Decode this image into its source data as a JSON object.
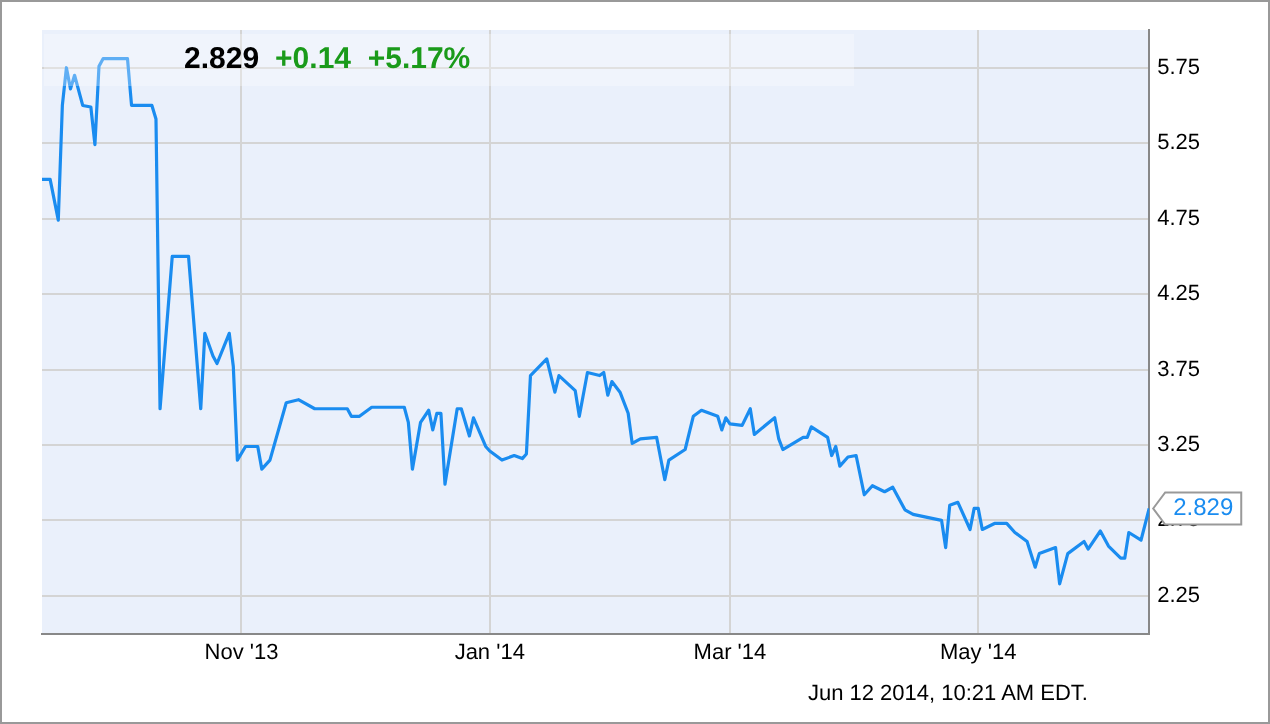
{
  "chart_data": {
    "type": "line",
    "title": "2.829",
    "subtitle": "+0.14  +5.17%",
    "x": [
      "2013-09-13",
      "2013-09-15",
      "2013-09-17",
      "2013-09-18",
      "2013-09-19",
      "2013-09-20",
      "2013-09-21",
      "2013-09-23",
      "2013-09-25",
      "2013-09-26",
      "2013-09-27",
      "2013-09-28",
      "2013-10-04",
      "2013-10-05",
      "2013-10-10",
      "2013-10-11",
      "2013-10-12",
      "2013-10-15",
      "2013-10-19",
      "2013-10-22",
      "2013-10-23",
      "2013-10-25",
      "2013-10-26",
      "2013-10-29",
      "2013-10-30",
      "2013-10-31",
      "2013-11-02",
      "2013-11-05",
      "2013-11-06",
      "2013-11-08",
      "2013-11-12",
      "2013-11-15",
      "2013-11-19",
      "2013-11-27",
      "2013-11-28",
      "2013-11-30",
      "2013-12-03",
      "2013-12-11",
      "2013-12-12",
      "2013-12-13",
      "2013-12-15",
      "2013-12-17",
      "2013-12-18",
      "2013-12-19",
      "2013-12-20",
      "2013-12-21",
      "2013-12-24",
      "2013-12-25",
      "2013-12-27",
      "2013-12-28",
      "2013-12-31",
      "2014-01-01",
      "2014-01-04",
      "2014-01-07",
      "2014-01-09",
      "2014-01-10",
      "2014-01-11",
      "2014-01-15",
      "2014-01-17",
      "2014-01-18",
      "2014-01-22",
      "2014-01-23",
      "2014-01-25",
      "2014-01-28",
      "2014-01-29",
      "2014-01-30",
      "2014-01-31",
      "2014-02-02",
      "2014-02-04",
      "2014-02-05",
      "2014-02-07",
      "2014-02-11",
      "2014-02-13",
      "2014-02-14",
      "2014-02-18",
      "2014-02-20",
      "2014-02-22",
      "2014-02-26",
      "2014-02-27",
      "2014-02-28",
      "2014-03-01",
      "2014-03-04",
      "2014-03-06",
      "2014-03-07",
      "2014-03-12",
      "2014-03-13",
      "2014-03-14",
      "2014-03-19",
      "2014-03-20",
      "2014-03-21",
      "2014-03-25",
      "2014-03-26",
      "2014-03-27",
      "2014-03-28",
      "2014-03-30",
      "2014-04-01",
      "2014-04-03",
      "2014-04-05",
      "2014-04-08",
      "2014-04-10",
      "2014-04-13",
      "2014-04-15",
      "2014-04-22",
      "2014-04-23",
      "2014-04-24",
      "2014-04-26",
      "2014-04-29",
      "2014-04-30",
      "2014-05-01",
      "2014-05-02",
      "2014-05-05",
      "2014-05-08",
      "2014-05-10",
      "2014-05-13",
      "2014-05-15",
      "2014-05-16",
      "2014-05-20",
      "2014-05-21",
      "2014-05-23",
      "2014-05-27",
      "2014-05-28",
      "2014-05-31",
      "2014-06-02",
      "2014-06-05",
      "2014-06-06",
      "2014-06-07",
      "2014-06-10",
      "2014-06-12"
    ],
    "series": [
      {
        "color": "#1a8cf0",
        "values": [
          5.01,
          5.01,
          4.74,
          5.5,
          5.75,
          5.61,
          5.7,
          5.5,
          5.49,
          5.24,
          5.76,
          5.81,
          5.81,
          5.5,
          5.5,
          5.41,
          3.49,
          4.5,
          4.5,
          3.49,
          3.99,
          3.84,
          3.79,
          3.99,
          3.77,
          3.15,
          3.24,
          3.24,
          3.09,
          3.15,
          3.53,
          3.55,
          3.49,
          3.49,
          3.44,
          3.44,
          3.5,
          3.5,
          3.4,
          3.09,
          3.4,
          3.48,
          3.35,
          3.46,
          3.46,
          2.99,
          3.49,
          3.49,
          3.31,
          3.43,
          3.24,
          3.21,
          3.15,
          3.18,
          3.16,
          3.19,
          3.71,
          3.82,
          3.6,
          3.71,
          3.61,
          3.44,
          3.73,
          3.71,
          3.73,
          3.58,
          3.67,
          3.6,
          3.46,
          3.26,
          3.29,
          3.3,
          3.02,
          3.15,
          3.22,
          3.44,
          3.48,
          3.44,
          3.35,
          3.43,
          3.39,
          3.38,
          3.49,
          3.32,
          3.43,
          3.29,
          3.22,
          3.3,
          3.3,
          3.37,
          3.3,
          3.18,
          3.24,
          3.11,
          3.17,
          3.18,
          2.92,
          2.98,
          2.94,
          2.97,
          2.82,
          2.79,
          2.75,
          2.57,
          2.85,
          2.87,
          2.69,
          2.83,
          2.83,
          2.69,
          2.73,
          2.73,
          2.67,
          2.61,
          2.44,
          2.53,
          2.57,
          2.33,
          2.53,
          2.61,
          2.56,
          2.68,
          2.58,
          2.5,
          2.5,
          2.67,
          2.62,
          2.829
        ]
      }
    ],
    "xlim": [
      "2013-09-13",
      "2014-06-12"
    ],
    "xticks": [
      {
        "value": "2013-11-01",
        "label": "Nov '13"
      },
      {
        "value": "2014-01-01",
        "label": "Jan '14"
      },
      {
        "value": "2014-03-01",
        "label": "Mar '14"
      },
      {
        "value": "2014-05-01",
        "label": "May '14"
      }
    ],
    "ylim": [
      2,
      6
    ],
    "yticks": [
      2.25,
      2.75,
      3.25,
      3.75,
      4.25,
      4.75,
      5.25,
      5.75
    ],
    "grid": true,
    "annotations": [
      {
        "text": "2.829",
        "x": "2014-06-12",
        "y": 2.829
      },
      "Jun 12 2014, 10:21 AM EDT."
    ]
  }
}
